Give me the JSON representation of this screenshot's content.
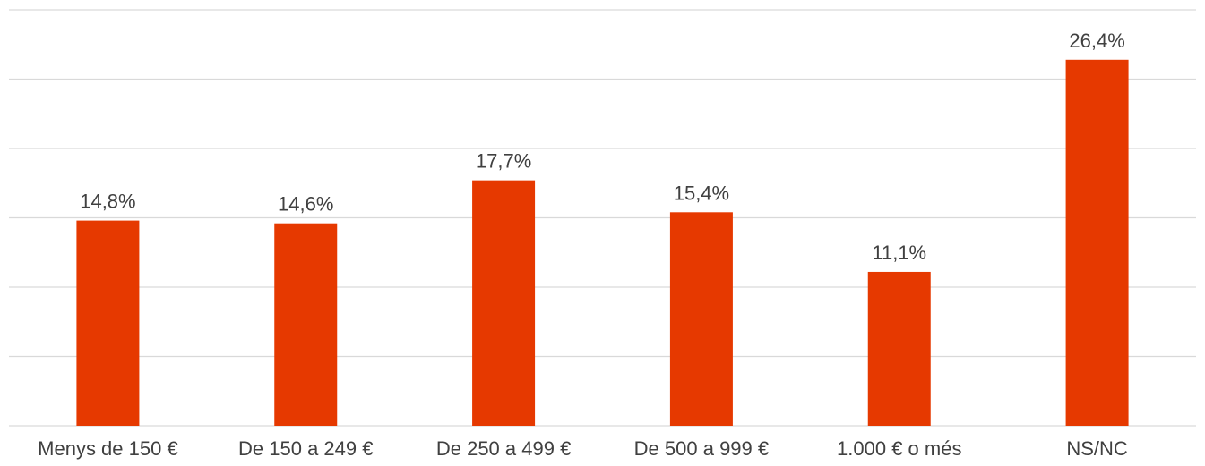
{
  "chart_data": {
    "type": "bar",
    "categories": [
      "Menys de 150 €",
      "De 150 a 249 €",
      "De 250 a 499 €",
      "De 500 a 999 €",
      "1.000 € o més",
      "NS/NC"
    ],
    "values": [
      14.8,
      14.6,
      17.7,
      15.4,
      11.1,
      26.4
    ],
    "value_labels": [
      "14,8%",
      "14,6%",
      "17,7%",
      "15,4%",
      "11,1%",
      "26,4%"
    ],
    "ylim": [
      0,
      30
    ],
    "gridlines": [
      0,
      5,
      10,
      15,
      20,
      25,
      30
    ],
    "grid": true,
    "legend": "none",
    "bar_color": "#e63900"
  }
}
